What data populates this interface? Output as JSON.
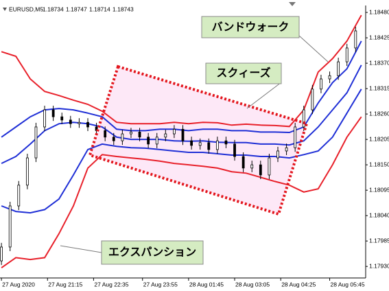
{
  "chart_data": {
    "type": "candlestick",
    "symbol": "EURUSD,M5",
    "quote": [
      1.18734,
      1.18747,
      1.18714,
      1.18743
    ],
    "annotations": [
      "バンドウォーク",
      "スクィーズ",
      "エクスパンション"
    ],
    "xlim": [
      -0.5,
      126.5
    ],
    "xticks": [
      {
        "value": 0,
        "label": "27 Aug 2020"
      },
      {
        "value": 16,
        "label": "27 Aug 21:15"
      },
      {
        "value": 32,
        "label": "27 Aug 22:35"
      },
      {
        "value": 49,
        "label": "27 Aug 23:55"
      },
      {
        "value": 65,
        "label": "28 Aug 01:45"
      },
      {
        "value": 81,
        "label": "28 Aug 03:05"
      },
      {
        "value": 97,
        "label": "28 Aug 04:25"
      },
      {
        "value": 114,
        "label": "28 Aug 05:45"
      }
    ],
    "ylim": [
      1.17905,
      1.18495
    ],
    "yticks": [
      {
        "value": 1.1848,
        "label": "1.18480"
      },
      1.18425,
      {
        "value": 1.1837,
        "label": "1.18370"
      },
      1.18315,
      {
        "value": 1.1826,
        "label": "1.18260"
      },
      1.18205,
      {
        "value": 1.1815,
        "label": "1.18150"
      },
      1.18095,
      {
        "value": 1.1804,
        "label": "1.18040"
      },
      1.17985,
      {
        "value": 1.1793,
        "label": "1.17930"
      }
    ],
    "candle_color": "#000000",
    "candles": {
      "x": [
        0,
        3,
        6,
        9,
        12,
        15,
        18,
        21,
        24,
        27,
        30,
        33,
        36,
        39,
        42,
        45,
        48,
        51,
        54,
        57,
        60,
        63,
        66,
        69,
        72,
        75,
        78,
        81,
        84,
        87,
        90,
        93,
        96,
        99,
        102,
        105,
        108,
        111,
        114,
        117,
        120,
        123
      ],
      "open": [
        1.17942,
        1.17972,
        1.18061,
        1.18106,
        1.18165,
        1.18232,
        1.18269,
        1.18254,
        1.18247,
        1.18239,
        1.18242,
        1.18232,
        1.18224,
        1.1821,
        1.18202,
        1.18217,
        1.18221,
        1.1821,
        1.18195,
        1.1821,
        1.18217,
        1.18227,
        1.18202,
        1.18192,
        1.18198,
        1.18183,
        1.18202,
        1.18195,
        1.18168,
        1.18143,
        1.1815,
        1.18128,
        1.18165,
        1.1818,
        1.18187,
        1.18232,
        1.18269,
        1.18314,
        1.18336,
        1.18343,
        1.18373,
        1.18403
      ],
      "high": [
        1.17981,
        1.1807,
        1.18115,
        1.18174,
        1.18241,
        1.18278,
        1.18278,
        1.18263,
        1.18256,
        1.18251,
        1.18251,
        1.18241,
        1.18233,
        1.18219,
        1.18226,
        1.1823,
        1.1823,
        1.18219,
        1.18219,
        1.18226,
        1.18236,
        1.18236,
        1.18211,
        1.18207,
        1.18207,
        1.18211,
        1.18211,
        1.18204,
        1.18177,
        1.18159,
        1.18159,
        1.18174,
        1.18189,
        1.18196,
        1.18241,
        1.18278,
        1.18323,
        1.18345,
        1.18352,
        1.18382,
        1.18412,
        1.18449
      ],
      "low": [
        1.17933,
        1.17963,
        1.18052,
        1.18097,
        1.18156,
        1.18223,
        1.18245,
        1.18238,
        1.1823,
        1.1823,
        1.18223,
        1.18215,
        1.18201,
        1.18193,
        1.18193,
        1.18208,
        1.18201,
        1.18186,
        1.18186,
        1.18201,
        1.18208,
        1.18193,
        1.18183,
        1.18183,
        1.18174,
        1.18174,
        1.18186,
        1.18159,
        1.18134,
        1.18134,
        1.18119,
        1.18119,
        1.18156,
        1.18171,
        1.18178,
        1.18223,
        1.1826,
        1.18305,
        1.18327,
        1.18334,
        1.18364,
        1.18394
      ],
      "close": [
        1.17972,
        1.18061,
        1.18106,
        1.18165,
        1.18232,
        1.18269,
        1.18254,
        1.18247,
        1.18239,
        1.18242,
        1.18232,
        1.18224,
        1.1821,
        1.18202,
        1.18217,
        1.18221,
        1.1821,
        1.18195,
        1.1821,
        1.18217,
        1.18227,
        1.18202,
        1.18192,
        1.18198,
        1.18183,
        1.18202,
        1.18195,
        1.18168,
        1.18143,
        1.1815,
        1.18128,
        1.18165,
        1.1818,
        1.18187,
        1.18232,
        1.18269,
        1.18314,
        1.18336,
        1.18343,
        1.18373,
        1.18403,
        1.1844
      ]
    },
    "band_x": [
      0,
      5,
      10,
      15,
      20,
      25,
      30,
      35,
      40,
      45,
      50,
      55,
      60,
      65,
      70,
      75,
      80,
      85,
      90,
      95,
      100,
      105,
      110,
      115,
      120,
      125
    ],
    "series": [
      {
        "color": "#e8202a",
        "values": [
          1.18395,
          1.18385,
          1.18336,
          1.18309,
          1.183,
          1.1829,
          1.18281,
          1.18266,
          1.18242,
          1.18239,
          1.18239,
          1.18239,
          1.18242,
          1.18239,
          1.18242,
          1.18241,
          1.18236,
          1.18238,
          1.18236,
          1.18235,
          1.18233,
          1.18269,
          1.18351,
          1.1838,
          1.18418,
          1.18474
        ]
      },
      {
        "color": "#1f2fd6",
        "values": [
          1.1821,
          1.18232,
          1.18254,
          1.18269,
          1.18272,
          1.18269,
          1.18262,
          1.18254,
          1.18227,
          1.18224,
          1.18224,
          1.18227,
          1.18227,
          1.18224,
          1.18227,
          1.18227,
          1.18224,
          1.18224,
          1.18221,
          1.18221,
          1.1822,
          1.18232,
          1.18284,
          1.18328,
          1.18358,
          1.18418
        ]
      },
      {
        "color": "#1f2fd6",
        "values": [
          1.18153,
          1.18168,
          1.18195,
          1.18224,
          1.18239,
          1.18242,
          1.18239,
          1.18232,
          1.1821,
          1.18205,
          1.18205,
          1.18205,
          1.18202,
          1.18201,
          1.18202,
          1.18199,
          1.18198,
          1.18198,
          1.18195,
          1.18195,
          1.18193,
          1.18202,
          1.18232,
          1.18269,
          1.18306,
          1.18366
        ]
      },
      {
        "color": "#1f2fd6",
        "values": [
          1.18061,
          1.18049,
          1.18046,
          1.18053,
          1.18076,
          1.18128,
          1.18183,
          1.18195,
          1.1819,
          1.18187,
          1.18186,
          1.18183,
          1.1818,
          1.18177,
          1.18177,
          1.18174,
          1.18171,
          1.18171,
          1.18168,
          1.18168,
          1.18165,
          1.18172,
          1.1818,
          1.1821,
          1.18262,
          1.18314
        ]
      },
      {
        "color": "#e8202a",
        "values": [
          1.17927,
          1.17949,
          1.17945,
          1.17949,
          1.18001,
          1.18061,
          1.18143,
          1.18172,
          1.18168,
          1.18165,
          1.18162,
          1.18158,
          1.18153,
          1.1815,
          1.18147,
          1.18143,
          1.18135,
          1.18132,
          1.18123,
          1.18114,
          1.18106,
          1.18091,
          1.18098,
          1.1815,
          1.1821,
          1.18254
        ]
      }
    ]
  }
}
